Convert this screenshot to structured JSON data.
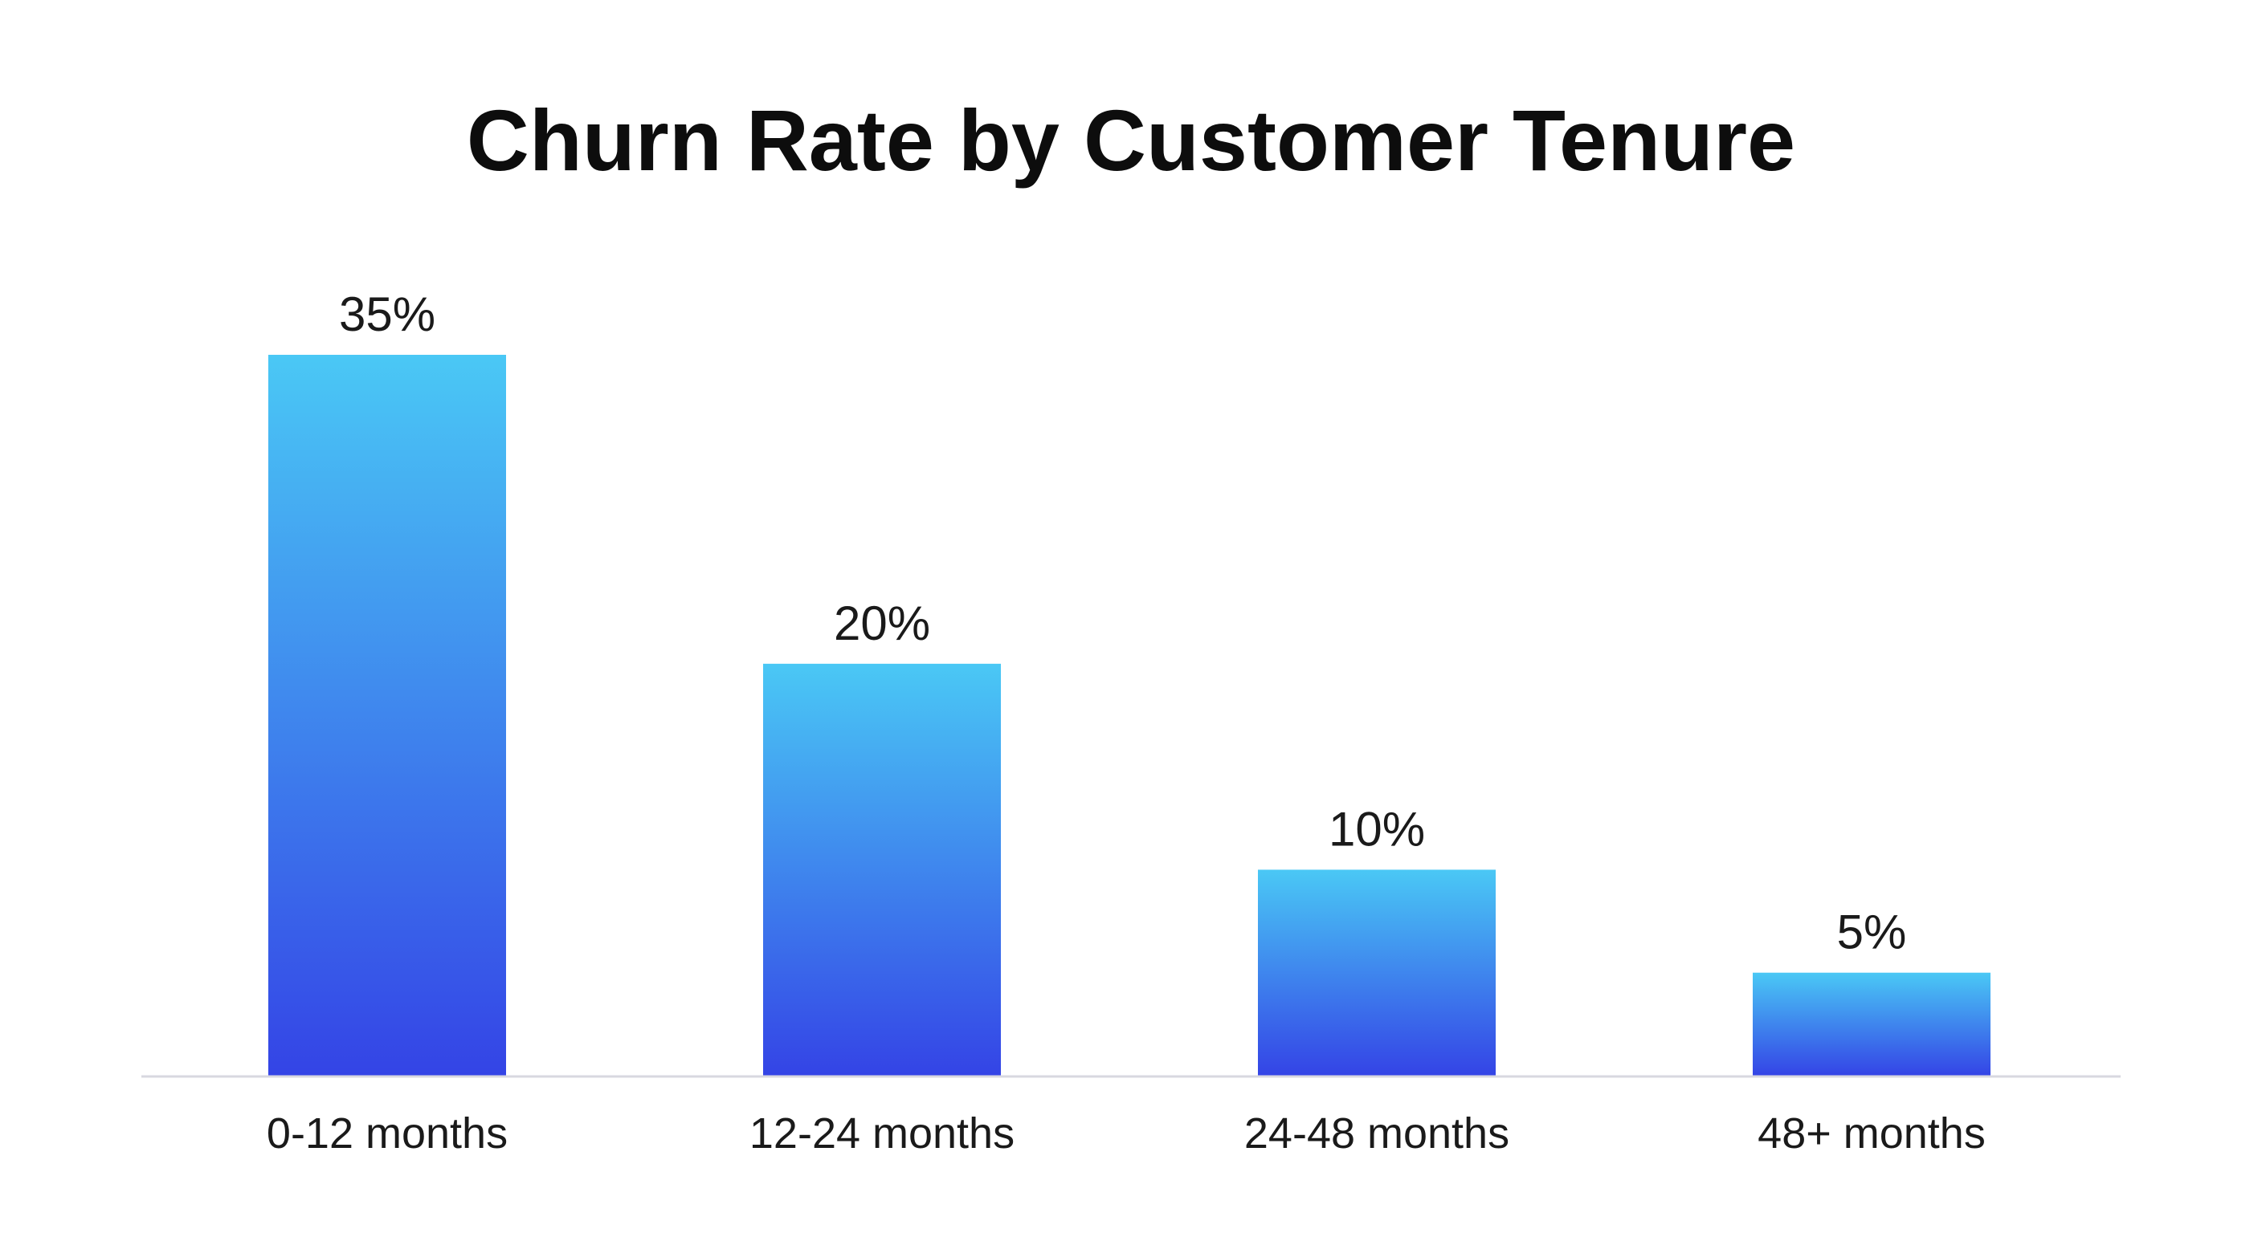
{
  "chart_data": {
    "type": "bar",
    "title": "Churn Rate by Customer Tenure",
    "xlabel": "",
    "ylabel": "",
    "categories": [
      "0-12 months",
      "12-24 months",
      "24-48 months",
      "48+ months"
    ],
    "values": [
      35,
      20,
      10,
      5
    ],
    "value_labels": [
      "35%",
      "20%",
      "10%",
      "5%"
    ],
    "ylim": [
      0,
      35
    ],
    "grid": false,
    "legend": "none",
    "bar_gradient_top": "#4ac8f5",
    "bar_gradient_bottom": "#3444e6",
    "axis_color": "#d8d8e0"
  }
}
